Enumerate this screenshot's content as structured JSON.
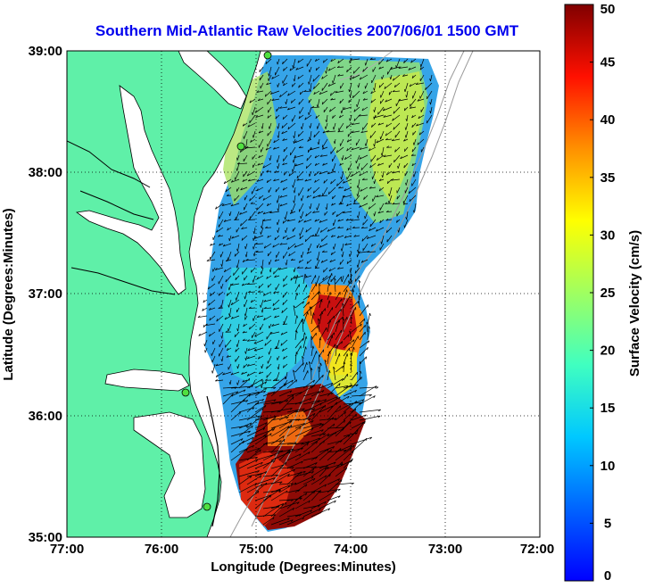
{
  "title": "Southern Mid-Atlantic Raw Velocities 2007/06/01 1500 GMT",
  "map": {
    "xlabel": "Longitude (Degrees:Minutes)",
    "ylabel": "Latitude (Degrees:Minutes)",
    "x_ticks": [
      "77:00",
      "76:00",
      "75:00",
      "74:00",
      "73:00",
      "72:00"
    ],
    "y_ticks": [
      "39:00",
      "38:00",
      "37:00",
      "36:00",
      "35:00"
    ],
    "land_color": "#5ff0a8",
    "water_color": "#ffffff",
    "grid": true
  },
  "colorbar": {
    "label": "Surface Velocity (cm/s)",
    "ticks": [
      "0",
      "5",
      "10",
      "15",
      "20",
      "25",
      "30",
      "35",
      "40",
      "45",
      "50"
    ],
    "range": [
      0,
      50
    ],
    "colormap": "jet"
  }
}
